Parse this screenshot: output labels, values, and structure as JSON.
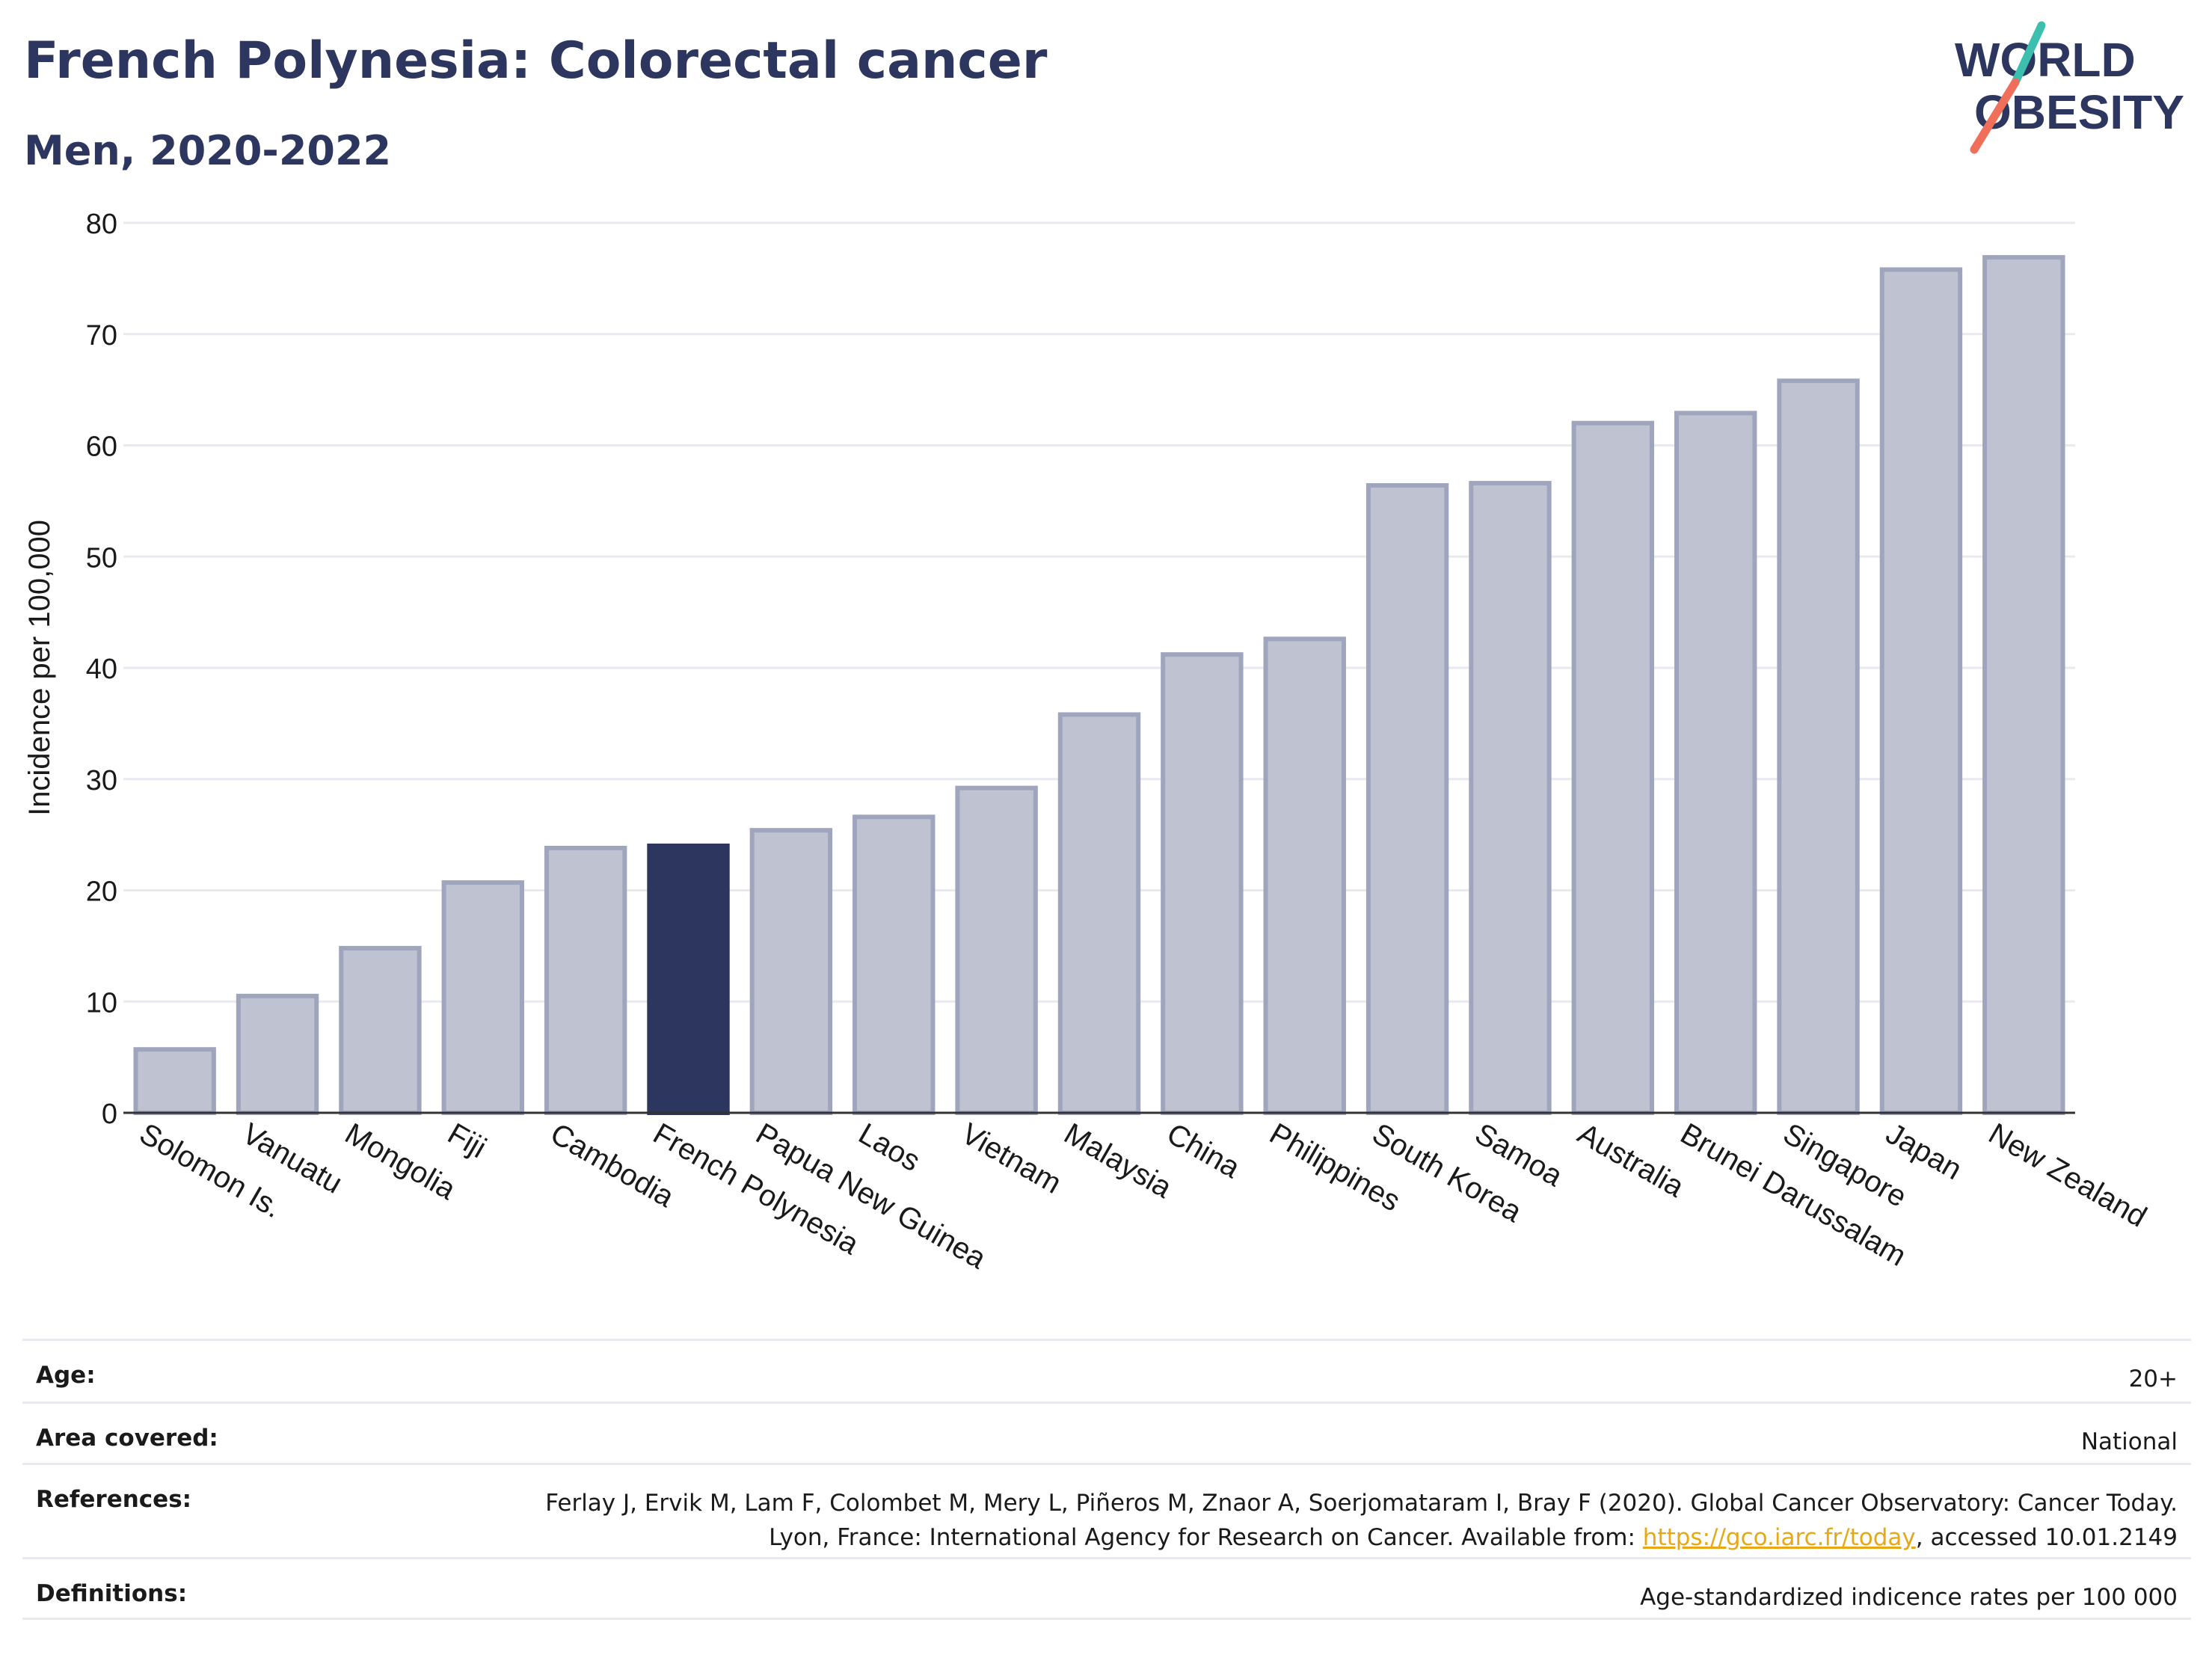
{
  "header": {
    "title": "French Polynesia: Colorectal cancer",
    "subtitle": "Men, 2020-2022"
  },
  "logo": {
    "line1": "WORLD",
    "line2": "OBESITY"
  },
  "chart_data": {
    "type": "bar",
    "title": "French Polynesia: Colorectal cancer",
    "subtitle": "Men, 2020-2022",
    "ylabel": "Incidence per 100,000",
    "xlabel": "",
    "ylim": [
      0,
      80
    ],
    "yticks": [
      0,
      10,
      20,
      30,
      40,
      50,
      60,
      70,
      80
    ],
    "grid": true,
    "highlight": "French Polynesia",
    "colors": {
      "bar": "#bfc3d1",
      "bar_edge": "#9fa5bd",
      "highlight": "#2c365e",
      "grid": "#e8eaf0"
    },
    "categories": [
      "Solomon Is.",
      "Vanuatu",
      "Mongolia",
      "Fiji",
      "Cambodia",
      "French Polynesia",
      "Papua New Guinea",
      "Laos",
      "Vietnam",
      "Malaysia",
      "China",
      "Philippines",
      "South Korea",
      "Samoa",
      "Australia",
      "Brunei Darussalam",
      "Singapore",
      "Japan",
      "New Zealand"
    ],
    "values": [
      5.7,
      10.5,
      14.8,
      20.7,
      23.8,
      24.0,
      25.4,
      26.6,
      29.2,
      35.8,
      41.2,
      42.6,
      56.4,
      56.6,
      62.0,
      62.9,
      65.8,
      75.8,
      76.9
    ]
  },
  "meta": [
    {
      "label": "Age:",
      "value": "20+"
    },
    {
      "label": "Area covered:",
      "value": "National"
    },
    {
      "label": "References:",
      "value_before": "Ferlay J, Ervik M, Lam F, Colombet M, Mery L, Piñeros M, Znaor A, Soerjomataram I, Bray F (2020). Global Cancer Observatory: Cancer Today. Lyon, France: International Agency for Research on Cancer. Available from: ",
      "link": "https://gco.iarc.fr/today",
      "value_after": ", accessed 10.01.2149"
    },
    {
      "label": "Definitions:",
      "value": "Age-standardized indicence rates per 100 000"
    }
  ]
}
